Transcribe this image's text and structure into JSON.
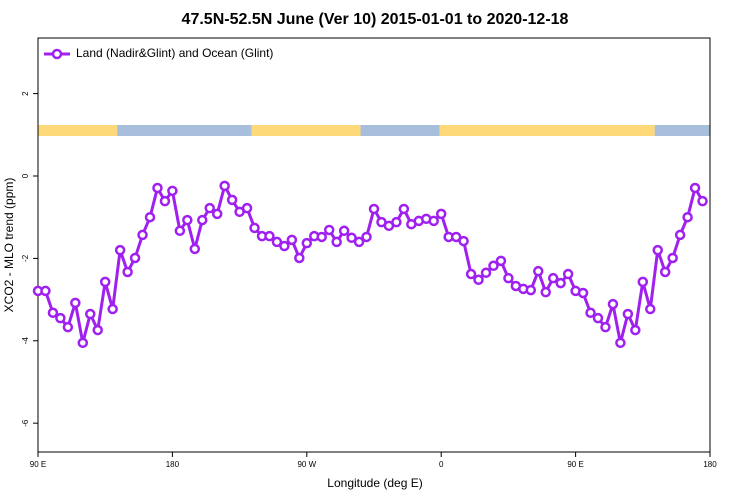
{
  "chart_data": {
    "type": "line",
    "title": "47.5N-52.5N June (Ver 10)   2015-01-01 to 2020-12-18",
    "x_label": "Longitude (deg E)",
    "y_label": "XCO2 - MLO trend (ppm)",
    "legend_position": "top-left",
    "xlim": [
      90,
      540
    ],
    "ylim": [
      -6.7,
      3.35
    ],
    "xticks": [
      {
        "value": 90,
        "label": "90 E"
      },
      180,
      {
        "value": 270,
        "label": "90 W"
      },
      {
        "value": 360,
        "label": "0"
      },
      {
        "value": 450,
        "label": "90 E"
      },
      {
        "value": 540,
        "label": "180"
      }
    ],
    "yticks": [
      -6,
      -4,
      -2,
      0,
      2
    ],
    "band": [
      {
        "from": 90,
        "to": 143,
        "color": "#fdd97a"
      },
      {
        "from": 143,
        "to": 233,
        "color": "#a7bedc"
      },
      {
        "from": 233,
        "to": 306,
        "color": "#fdd97a"
      },
      {
        "from": 306,
        "to": 359,
        "color": "#a7bedc"
      },
      {
        "from": 359,
        "to": 503,
        "color": "#fdd97a"
      },
      {
        "from": 503,
        "to": 540,
        "color": "#a7bedc"
      }
    ],
    "x": [
      90,
      95,
      100,
      105,
      110,
      115,
      120,
      125,
      130,
      135,
      140,
      145,
      150,
      155,
      160,
      165,
      170,
      175,
      180,
      185,
      190,
      195,
      200,
      205,
      210,
      215,
      220,
      225,
      230,
      235,
      240,
      245,
      250,
      255,
      260,
      265,
      270,
      275,
      280,
      285,
      290,
      295,
      300,
      305,
      310,
      315,
      320,
      325,
      330,
      335,
      340,
      345,
      350,
      355,
      360,
      365,
      370,
      375,
      380,
      385,
      390,
      395,
      400,
      405,
      410,
      415,
      420,
      425,
      430,
      435,
      440,
      445,
      450,
      455,
      460,
      465,
      470,
      475,
      480,
      485,
      490,
      495,
      500,
      505,
      510,
      515,
      520,
      525,
      530,
      535
    ],
    "series": [
      {
        "name": "Land (Nadir&Glint) and Ocean (Glint)",
        "color": "#a020f0",
        "values": [
          -2.79,
          -2.79,
          -3.32,
          -3.45,
          -3.67,
          -3.08,
          -4.05,
          -3.35,
          -3.74,
          -2.57,
          -3.23,
          -1.8,
          -2.33,
          -1.99,
          -1.43,
          -1.0,
          -0.29,
          -0.61,
          -0.36,
          -1.33,
          -1.07,
          -1.77,
          -1.07,
          -0.78,
          -0.92,
          -0.24,
          -0.58,
          -0.87,
          -0.78,
          -1.26,
          -1.46,
          -1.46,
          -1.6,
          -1.7,
          -1.55,
          -1.99,
          -1.63,
          -1.46,
          -1.48,
          -1.31,
          -1.6,
          -1.33,
          -1.5,
          -1.6,
          -1.48,
          -0.8,
          -1.12,
          -1.21,
          -1.12,
          -0.8,
          -1.17,
          -1.09,
          -1.04,
          -1.09,
          -0.92,
          -1.48,
          -1.48,
          -1.58,
          -2.38,
          -2.52,
          -2.35,
          -2.18,
          -2.06,
          -2.48,
          -2.67,
          -2.74,
          -2.77,
          -2.31,
          -2.82,
          -2.48,
          -2.6,
          -2.38,
          -2.79,
          -2.84,
          -3.32,
          -3.45,
          -3.67,
          -3.11,
          -4.05,
          -3.35,
          -3.74,
          -2.57,
          -3.23,
          -1.8,
          -2.33,
          -1.99,
          -1.43,
          -1.0,
          -0.29,
          -0.61
        ]
      }
    ]
  }
}
